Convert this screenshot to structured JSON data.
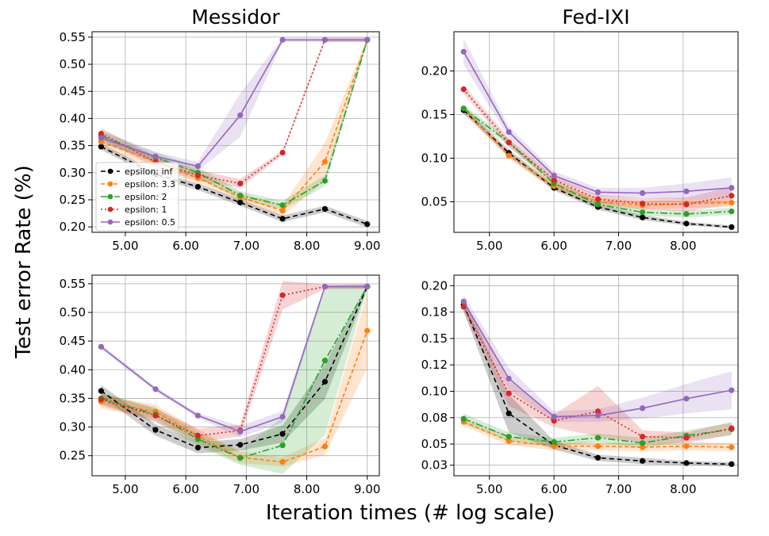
{
  "figure": {
    "ylabel": "Test error Rate (%)",
    "xlabel": "Iteration times (# log scale)"
  },
  "series_styles": [
    {
      "name": "epsilon: inf",
      "color": "#000000",
      "dash": "6,4"
    },
    {
      "name": "epsilon: 3.3",
      "color": "#ff7f0e",
      "dash": "5,3"
    },
    {
      "name": "epsilon: 2",
      "color": "#2ca02c",
      "dash": "9,3,2,3"
    },
    {
      "name": "epsilon: 1",
      "color": "#d62728",
      "dash": "2,3"
    },
    {
      "name": "epsilon: 0.5",
      "color": "#9467bd",
      "dash": ""
    }
  ],
  "chart_data": [
    {
      "type": "line",
      "title": "Messidor",
      "xticks": [
        "5.00",
        "6.00",
        "7.00",
        "8.00",
        "9.00"
      ],
      "yticks": [
        "0.20",
        "0.25",
        "0.30",
        "0.35",
        "0.40",
        "0.45",
        "0.50",
        "0.55"
      ],
      "xlim": [
        4.45,
        9.2
      ],
      "ylim": [
        0.19,
        0.56
      ],
      "x": [
        4.6,
        5.5,
        6.2,
        6.9,
        7.6,
        8.3,
        9.0
      ],
      "legend": "lower-left",
      "series": [
        {
          "name": "epsilon: inf",
          "values": [
            0.348,
            0.297,
            0.274,
            0.245,
            0.215,
            0.233,
            0.205
          ],
          "band": [
            0.006,
            0.006,
            0.006,
            0.006,
            0.006,
            0.006,
            0.006
          ]
        },
        {
          "name": "epsilon: 3.3",
          "values": [
            0.357,
            0.32,
            0.29,
            0.255,
            0.23,
            0.32,
            0.545
          ],
          "band": [
            0.012,
            0.01,
            0.01,
            0.008,
            0.01,
            0.035,
            0.004
          ]
        },
        {
          "name": "epsilon: 2",
          "values": [
            0.368,
            0.328,
            0.3,
            0.258,
            0.24,
            0.285,
            0.545
          ],
          "band": [
            0.01,
            0.01,
            0.01,
            0.008,
            0.008,
            0.01,
            0.004
          ]
        },
        {
          "name": "epsilon: 1",
          "values": [
            0.372,
            0.32,
            0.295,
            0.28,
            0.337,
            0.545,
            0.545
          ],
          "band": [
            0.01,
            0.01,
            0.01,
            0.008,
            0.004,
            0.004,
            0.004
          ]
        },
        {
          "name": "epsilon: 0.5",
          "values": [
            0.364,
            0.33,
            0.312,
            0.406,
            0.545,
            0.545,
            0.545
          ],
          "band": [
            0.01,
            0.008,
            0.008,
            0.04,
            0.004,
            0.004,
            0.004
          ]
        }
      ]
    },
    {
      "type": "line",
      "title": "Fed-IXI",
      "xticks": [
        "5.00",
        "6.00",
        "7.00",
        "8.00"
      ],
      "yticks": [
        "0.05",
        "0.10",
        "0.15",
        "0.20"
      ],
      "xlim": [
        4.45,
        8.85
      ],
      "ylim": [
        0.015,
        0.245
      ],
      "x": [
        4.6,
        5.3,
        6.0,
        6.68,
        7.37,
        8.05,
        8.75
      ],
      "series": [
        {
          "name": "epsilon: inf",
          "values": [
            0.155,
            0.106,
            0.066,
            0.044,
            0.032,
            0.025,
            0.021
          ],
          "band": [
            0.004,
            0.004,
            0.003,
            0.003,
            0.003,
            0.002,
            0.002
          ]
        },
        {
          "name": "epsilon: 3.3",
          "values": [
            0.157,
            0.103,
            0.068,
            0.05,
            0.046,
            0.048,
            0.049
          ],
          "band": [
            0.004,
            0.004,
            0.004,
            0.005,
            0.005,
            0.005,
            0.005
          ]
        },
        {
          "name": "epsilon: 2",
          "values": [
            0.157,
            0.118,
            0.071,
            0.047,
            0.038,
            0.036,
            0.039
          ],
          "band": [
            0.004,
            0.004,
            0.004,
            0.004,
            0.004,
            0.004,
            0.004
          ]
        },
        {
          "name": "epsilon: 1",
          "values": [
            0.179,
            0.118,
            0.075,
            0.053,
            0.048,
            0.047,
            0.057
          ],
          "band": [
            0.005,
            0.005,
            0.004,
            0.005,
            0.006,
            0.008,
            0.01
          ]
        },
        {
          "name": "epsilon: 0.5",
          "values": [
            0.222,
            0.13,
            0.08,
            0.061,
            0.06,
            0.062,
            0.066
          ],
          "band": [
            0.015,
            0.006,
            0.005,
            0.005,
            0.006,
            0.009,
            0.012
          ]
        }
      ]
    },
    {
      "type": "line",
      "title": "",
      "xticks": [
        "5.00",
        "6.00",
        "7.00",
        "8.00",
        "9.00"
      ],
      "yticks": [
        "0.25",
        "0.30",
        "0.35",
        "0.40",
        "0.45",
        "0.50",
        "0.55"
      ],
      "xlim": [
        4.45,
        9.2
      ],
      "ylim": [
        0.215,
        0.565
      ],
      "x": [
        4.6,
        5.5,
        6.2,
        6.9,
        7.6,
        8.3,
        9.0
      ],
      "series": [
        {
          "name": "epsilon: inf",
          "values": [
            0.363,
            0.295,
            0.264,
            0.269,
            0.288,
            0.379,
            0.545
          ],
          "band": [
            0.01,
            0.01,
            0.01,
            0.01,
            0.015,
            0.03,
            0.004
          ]
        },
        {
          "name": "epsilon: 3.3",
          "values": [
            0.344,
            0.327,
            0.284,
            0.247,
            0.239,
            0.266,
            0.468
          ],
          "band": [
            0.012,
            0.012,
            0.012,
            0.01,
            0.008,
            0.015,
            0.065
          ]
        },
        {
          "name": "epsilon: 2",
          "values": [
            0.35,
            0.322,
            0.279,
            0.246,
            0.268,
            0.416,
            0.545
          ],
          "band": [
            0.01,
            0.012,
            0.012,
            0.012,
            0.05,
            0.13,
            0.004
          ]
        },
        {
          "name": "epsilon: 1",
          "values": [
            0.348,
            0.32,
            0.285,
            0.294,
            0.53,
            0.545,
            0.545
          ],
          "band": [
            0.01,
            0.012,
            0.012,
            0.01,
            0.025,
            0.004,
            0.004
          ]
        },
        {
          "name": "epsilon: 0.5",
          "values": [
            0.44,
            0.366,
            0.32,
            0.292,
            0.318,
            0.545,
            0.545
          ],
          "band": [
            0.004,
            0.004,
            0.004,
            0.01,
            0.01,
            0.004,
            0.004
          ]
        }
      ]
    },
    {
      "type": "line",
      "title": "",
      "xticks": [
        "5.00",
        "6.00",
        "7.00",
        "8.00"
      ],
      "yticks": [
        "0.03",
        "0.05",
        "0.08",
        "0.10",
        "0.12",
        "0.15",
        "0.18",
        "0.20"
      ],
      "ytick_values": [
        0.03,
        0.05,
        0.075,
        0.1,
        0.125,
        0.15,
        0.175,
        0.2
      ],
      "xlim": [
        4.45,
        8.85
      ],
      "ylim": [
        0.02,
        0.21
      ],
      "x": [
        4.6,
        5.3,
        6.0,
        6.68,
        7.37,
        8.05,
        8.75
      ],
      "series": [
        {
          "name": "epsilon: inf",
          "values": [
            0.182,
            0.079,
            0.049,
            0.037,
            0.034,
            0.032,
            0.031
          ],
          "band": [
            0.006,
            0.018,
            0.004,
            0.003,
            0.003,
            0.002,
            0.002
          ]
        },
        {
          "name": "epsilon: 3.3",
          "values": [
            0.071,
            0.053,
            0.048,
            0.048,
            0.047,
            0.048,
            0.047
          ],
          "band": [
            0.004,
            0.004,
            0.004,
            0.004,
            0.004,
            0.004,
            0.004
          ]
        },
        {
          "name": "epsilon: 2",
          "values": [
            0.074,
            0.057,
            0.052,
            0.056,
            0.051,
            0.058,
            0.064
          ],
          "band": [
            0.005,
            0.004,
            0.004,
            0.004,
            0.005,
            0.005,
            0.006
          ]
        },
        {
          "name": "epsilon: 1",
          "values": [
            0.18,
            0.098,
            0.072,
            0.081,
            0.057,
            0.056,
            0.065
          ],
          "band": [
            0.006,
            0.012,
            0.006,
            0.024,
            0.006,
            0.005,
            0.006
          ]
        },
        {
          "name": "epsilon: 0.5",
          "values": [
            0.185,
            0.112,
            0.076,
            0.077,
            0.084,
            0.093,
            0.101
          ],
          "band": [
            0.006,
            0.01,
            0.005,
            0.006,
            0.01,
            0.014,
            0.018
          ]
        }
      ]
    }
  ]
}
